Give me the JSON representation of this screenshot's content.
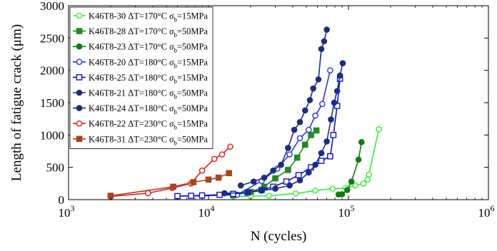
{
  "chart_data": {
    "type": "line",
    "xlabel": "N (cycles)",
    "ylabel": "Length of fatigue crack (μm)",
    "xscale": "log",
    "xlim": [
      1000,
      1000000
    ],
    "ylim": [
      0,
      3000
    ],
    "grid": false,
    "legend_position": "top-left",
    "x_ticks": [
      {
        "value": 1000,
        "base": "10",
        "exp": "3"
      },
      {
        "value": 10000,
        "base": "10",
        "exp": "4"
      },
      {
        "value": 100000,
        "base": "10",
        "exp": "5"
      },
      {
        "value": 1000000,
        "base": "10",
        "exp": "6"
      }
    ],
    "y_ticks": [
      {
        "value": 0,
        "label": "0"
      },
      {
        "value": 500,
        "label": "500"
      },
      {
        "value": 1000,
        "label": "1000"
      },
      {
        "value": 1500,
        "label": "1500"
      },
      {
        "value": 2000,
        "label": "2000"
      },
      {
        "value": 2500,
        "label": "2500"
      },
      {
        "value": 3000,
        "label": "3000"
      }
    ],
    "series": [
      {
        "name": "K46T8-30 ΔT=170°C σb=15MPa",
        "legend": {
          "pre": "K46T8-30 ΔT=170°C ",
          "sym": "σ",
          "sub": "b",
          "post": "=15MPa"
        },
        "color": "#33ee33",
        "marker": "open",
        "x": [
          15000,
          20000,
          27000,
          42000,
          58000,
          77000,
          96000,
          112000,
          128000,
          137000,
          140000,
          165000
        ],
        "y": [
          50,
          55,
          60,
          95,
          140,
          170,
          180,
          220,
          250,
          310,
          390,
          1090
        ]
      },
      {
        "name": "K46T8-28 ΔT=170°C σb=50MPa",
        "legend": {
          "pre": "K46T8-28 ΔT=170°C ",
          "sym": "σ",
          "sub": "b",
          "post": "=50MPa"
        },
        "color": "#1f8c1f",
        "marker": "square",
        "x": [
          15000,
          20000,
          25000,
          30000,
          37000,
          43000,
          49000,
          54000,
          59000
        ],
        "y": [
          70,
          120,
          200,
          330,
          460,
          650,
          850,
          1000,
          1070
        ]
      },
      {
        "name": "K46T8-23 ΔT=170°C σb=50MPa",
        "legend": {
          "pre": "K46T8-23 ΔT=170°C ",
          "sym": "σ",
          "sub": "b",
          "post": "=50MPa"
        },
        "color": "#117a11",
        "marker": "filled",
        "x": [
          85000,
          90000,
          98000,
          105000,
          118000,
          124000
        ],
        "y": [
          80,
          85,
          150,
          280,
          620,
          890
        ]
      },
      {
        "name": "K46T8-20 ΔT=180°C σb=15MPa",
        "legend": {
          "pre": "K46T8-20 ΔT=180°C ",
          "sym": "σ",
          "sub": "b",
          "post": "=15MPa"
        },
        "color": "#2a35e0",
        "marker": "open",
        "x": [
          6000,
          9000,
          16000,
          24000,
          31000,
          38000,
          45000,
          52000,
          58000,
          65000,
          74000
        ],
        "y": [
          55,
          60,
          75,
          290,
          480,
          700,
          950,
          1080,
          1300,
          1480,
          2000
        ]
      },
      {
        "name": "K46T8-25 ΔT=180°C σb=15MPa",
        "legend": {
          "pre": "K46T8-25 ΔT=180°C ",
          "sym": "σ",
          "sub": "b",
          "post": "=15MPa"
        },
        "color": "#1010cc",
        "marker": "open-square",
        "x": [
          6000,
          7500,
          9000,
          12000,
          15000,
          19000,
          24000,
          29000,
          36000,
          44000,
          54000,
          64000,
          74000,
          78000,
          83000,
          87000
        ],
        "y": [
          55,
          60,
          65,
          75,
          90,
          110,
          150,
          200,
          280,
          380,
          500,
          600,
          670,
          1000,
          1450,
          1870
        ]
      },
      {
        "name": "K46T8-21 ΔT=180°C σb=50MPa",
        "legend": {
          "pre": "K46T8-21 ΔT=180°C ",
          "sym": "σ",
          "sub": "b",
          "post": "=50MPa"
        },
        "color": "#1e2f7a",
        "marker": "filled",
        "x": [
          17000,
          21000,
          25000,
          29000,
          33000,
          37000,
          41000,
          45000,
          49000,
          53000,
          56000,
          61000,
          64000,
          67000,
          70000
        ],
        "y": [
          220,
          280,
          340,
          450,
          540,
          800,
          1080,
          1200,
          1380,
          1540,
          1720,
          1860,
          2330,
          2450,
          2630
        ]
      },
      {
        "name": "K46T8-24 ΔT=180°C σb=50MPa",
        "legend": {
          "pre": "K46T8-24 ΔT=180°C ",
          "sym": "σ",
          "sub": "b",
          "post": "=50MPa"
        },
        "color": "#1a2d85",
        "marker": "filled",
        "x": [
          13000,
          19000,
          24000,
          30000,
          38000,
          45000,
          52000,
          58000,
          64000,
          70000,
          75000,
          79000,
          83000,
          87000,
          91000
        ],
        "y": [
          100,
          110,
          140,
          170,
          220,
          300,
          420,
          540,
          720,
          900,
          1240,
          1500,
          1680,
          1920,
          2110
        ]
      },
      {
        "name": "K46T8-22 ΔT=230°C σb=15MPa",
        "legend": {
          "pre": "K46T8-22 ΔT=230°C ",
          "sym": "σ",
          "sub": "b",
          "post": "=15MPa"
        },
        "color": "#e41b1b",
        "marker": "open",
        "x": [
          2000,
          3700,
          5500,
          7500,
          9000,
          11000,
          12500,
          14300
        ],
        "y": [
          50,
          100,
          180,
          250,
          450,
          630,
          700,
          820
        ]
      },
      {
        "name": "K46T8-31 ΔT=230°C σb=50MPa",
        "legend": {
          "pre": "K46T8-31 ΔT=230°C ",
          "sym": "σ",
          "sub": "b",
          "post": "=50MPa"
        },
        "color": "#a6451f",
        "marker": "square",
        "x": [
          2000,
          5600,
          7800,
          10000,
          11800,
          14000
        ],
        "y": [
          60,
          200,
          270,
          310,
          340,
          410
        ]
      }
    ]
  }
}
